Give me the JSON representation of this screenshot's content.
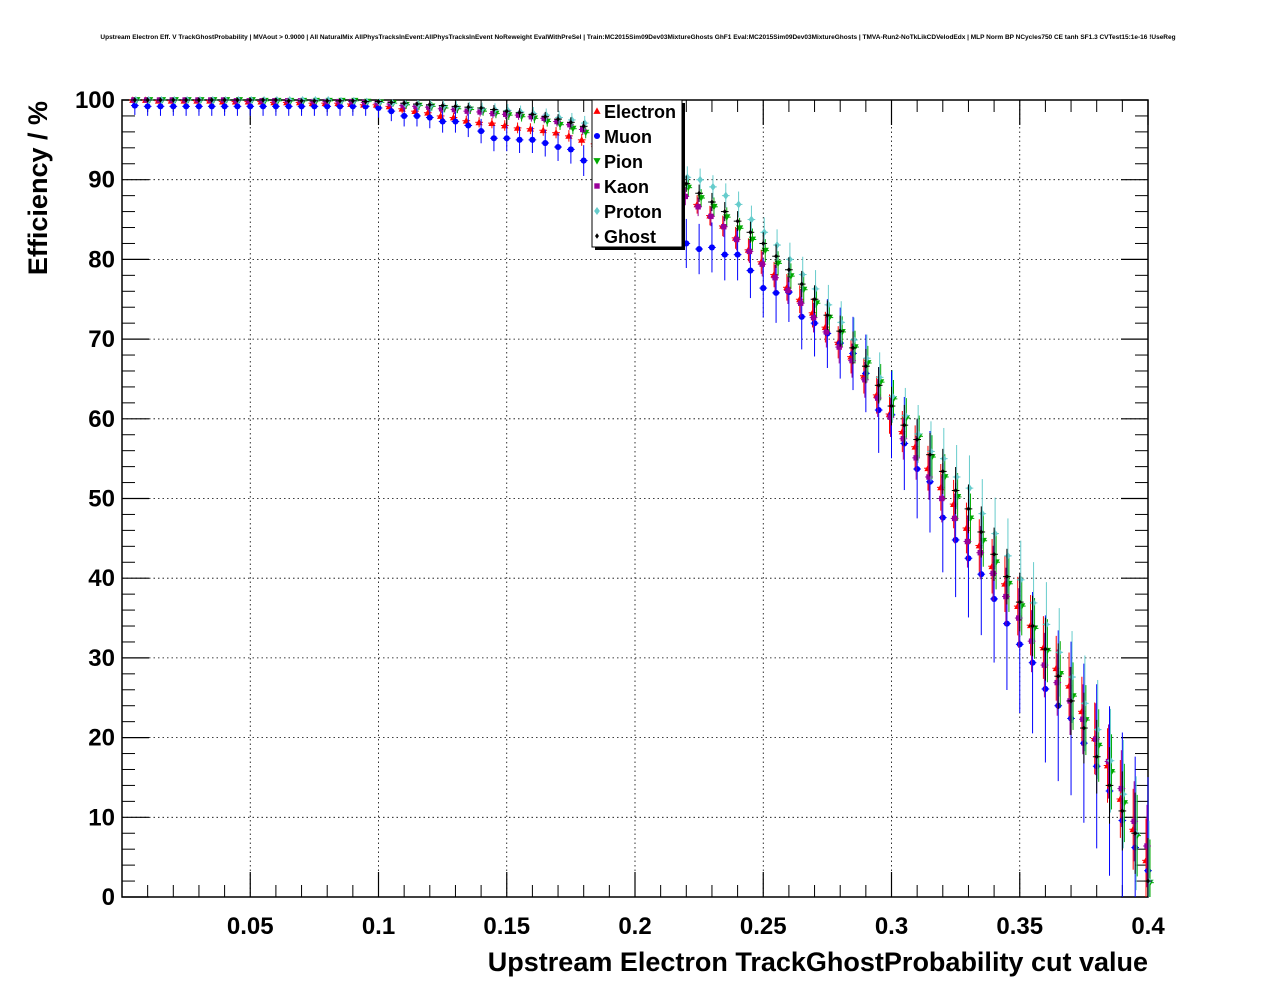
{
  "chart_data": {
    "type": "scatter",
    "title": "Upstream Electron Eff. V TrackGhostProbability | MVAout > 0.9000 | All NaturalMix AllPhysTracksInEvent:AllPhysTracksInEvent NoReweight EvalWithPreSel | Train:MC2015Sim09Dev03MixtureGhosts GhF1 Eval:MC2015Sim09Dev03MixtureGhosts | TMVA-Run2-NoTkLikCDVelodEdx | MLP Norm BP NCycles750 CE tanh SF1.3 CVTest15:1e-16 !UseReg",
    "xlabel": "Upstream Electron TrackGhostProbability cut value",
    "ylabel": "Efficiency / %",
    "xlim": [
      0.0,
      0.4
    ],
    "ylim": [
      0,
      100
    ],
    "xticks": [
      "0.05",
      "0.1",
      "0.15",
      "0.2",
      "0.25",
      "0.3",
      "0.35",
      "0.4"
    ],
    "yticks": [
      "0",
      "10",
      "20",
      "30",
      "40",
      "50",
      "60",
      "70",
      "80",
      "90",
      "100"
    ],
    "grid": true,
    "legend_position": "top-center",
    "x": [
      0.005,
      0.01,
      0.015,
      0.02,
      0.025,
      0.03,
      0.035,
      0.04,
      0.045,
      0.05,
      0.055,
      0.06,
      0.065,
      0.07,
      0.075,
      0.08,
      0.085,
      0.09,
      0.095,
      0.1,
      0.105,
      0.11,
      0.115,
      0.12,
      0.125,
      0.13,
      0.135,
      0.14,
      0.145,
      0.15,
      0.155,
      0.16,
      0.165,
      0.17,
      0.175,
      0.18,
      0.185,
      0.19,
      0.195,
      0.2,
      0.205,
      0.21,
      0.215,
      0.22,
      0.225,
      0.23,
      0.235,
      0.24,
      0.245,
      0.25,
      0.255,
      0.26,
      0.265,
      0.27,
      0.275,
      0.28,
      0.285,
      0.29,
      0.295,
      0.3,
      0.305,
      0.31,
      0.315,
      0.32,
      0.325,
      0.33,
      0.335,
      0.34,
      0.345,
      0.35,
      0.355,
      0.36,
      0.365,
      0.37,
      0.375,
      0.38,
      0.385,
      0.39,
      0.395,
      0.4
    ],
    "series": [
      {
        "name": "Electron",
        "color": "#ff0000",
        "marker": "triangle-up",
        "values": [
          100.0,
          100.0,
          99.9,
          99.9,
          99.9,
          99.9,
          99.9,
          99.8,
          99.8,
          99.8,
          99.8,
          99.7,
          99.7,
          99.7,
          99.6,
          99.6,
          99.6,
          99.5,
          99.4,
          99.4,
          99.2,
          98.9,
          98.6,
          98.4,
          98.0,
          97.8,
          97.4,
          97.2,
          97.1,
          96.8,
          96.5,
          96.4,
          96.2,
          95.9,
          95.5,
          95.0,
          94.5,
          93.8,
          93.0,
          92.3,
          91.3,
          90.4,
          89.3,
          88.1,
          86.9,
          85.5,
          84.2,
          82.7,
          81.2,
          79.7,
          78.1,
          76.5,
          75.0,
          73.3,
          71.5,
          69.6,
          67.8,
          65.4,
          63.0,
          60.6,
          58.4,
          56.5,
          53.8,
          51.4,
          49.3,
          46.3,
          44.1,
          41.5,
          39.3,
          36.5,
          34.1,
          31.3,
          28.7,
          26.5,
          23.3,
          19.9,
          16.5,
          12.3,
          8.5,
          4.6
        ]
      },
      {
        "name": "Muon",
        "color": "#0000ff",
        "marker": "circle",
        "values": [
          99.3,
          99.2,
          99.2,
          99.2,
          99.2,
          99.2,
          99.2,
          99.2,
          99.2,
          99.2,
          99.2,
          99.2,
          99.2,
          99.2,
          99.2,
          99.2,
          99.2,
          99.2,
          99.2,
          99.0,
          98.6,
          98.0,
          98.0,
          97.8,
          97.3,
          97.3,
          96.8,
          96.1,
          95.2,
          95.2,
          95.0,
          95.0,
          94.6,
          94.1,
          93.8,
          92.4,
          92.3,
          90.9,
          90.0,
          87.5,
          86.8,
          85.5,
          84.8,
          82.0,
          81.3,
          81.5,
          80.6,
          80.6,
          78.6,
          76.4,
          75.8,
          75.9,
          72.8,
          72.0,
          70.7,
          69.5,
          68.2,
          65.7,
          61.1,
          60.5,
          56.9,
          53.7,
          52.1,
          47.6,
          44.8,
          42.5,
          40.5,
          37.4,
          34.3,
          31.7,
          29.4,
          26.1,
          24.0,
          22.4,
          19.3,
          16.4,
          13.3,
          9.6,
          6.2,
          3.3
        ]
      },
      {
        "name": "Pion",
        "color": "#00aa00",
        "marker": "triangle-down",
        "values": [
          100.0,
          100.0,
          100.0,
          100.0,
          100.0,
          100.0,
          100.0,
          100.0,
          100.0,
          100.0,
          99.9,
          99.9,
          99.9,
          99.9,
          99.9,
          99.9,
          99.9,
          99.9,
          99.8,
          99.7,
          99.6,
          99.4,
          99.3,
          99.2,
          99.0,
          98.9,
          98.8,
          98.6,
          98.3,
          98.1,
          97.9,
          97.7,
          97.3,
          96.9,
          96.4,
          95.9,
          95.3,
          94.8,
          94.2,
          93.5,
          92.6,
          91.5,
          90.3,
          89.0,
          87.7,
          86.6,
          85.3,
          83.9,
          82.5,
          81.1,
          79.5,
          77.9,
          76.2,
          74.5,
          72.7,
          70.9,
          69.0,
          67.0,
          64.6,
          62.5,
          60.1,
          57.8,
          55.2,
          52.7,
          50.2,
          47.5,
          44.7,
          42.0,
          39.3,
          36.5,
          33.7,
          30.9,
          28.0,
          25.2,
          22.2,
          19.0,
          15.7,
          11.8,
          7.7,
          1.8
        ]
      },
      {
        "name": "Kaon",
        "color": "#990099",
        "marker": "square",
        "values": [
          100.0,
          100.0,
          100.0,
          100.0,
          100.0,
          100.0,
          100.0,
          100.0,
          99.9,
          99.9,
          99.9,
          99.9,
          99.9,
          99.9,
          99.8,
          99.8,
          99.8,
          99.8,
          99.7,
          99.6,
          99.5,
          99.3,
          99.2,
          99.1,
          98.9,
          98.8,
          98.6,
          98.5,
          98.3,
          98.2,
          98.1,
          97.9,
          97.7,
          97.3,
          96.9,
          96.3,
          95.6,
          94.9,
          94.0,
          93.0,
          91.8,
          90.5,
          89.3,
          87.9,
          86.6,
          85.4,
          84.1,
          82.5,
          81.0,
          79.4,
          77.7,
          76.1,
          74.5,
          72.7,
          70.9,
          69.0,
          67.3,
          64.9,
          62.6,
          60.2,
          57.5,
          55.1,
          52.7,
          50.0,
          47.5,
          44.6,
          43.2,
          40.6,
          37.7,
          35.0,
          32.1,
          29.1,
          26.9,
          24.6,
          22.3,
          19.8,
          17.0,
          13.6,
          9.5,
          6.4
        ]
      },
      {
        "name": "Proton",
        "color": "#66cccc",
        "marker": "diamond",
        "values": [
          100.0,
          100.0,
          100.0,
          100.0,
          100.0,
          100.0,
          100.0,
          100.0,
          100.0,
          100.0,
          100.0,
          100.0,
          100.0,
          100.0,
          100.0,
          100.0,
          99.9,
          99.9,
          99.8,
          99.7,
          99.6,
          99.5,
          99.4,
          99.3,
          99.2,
          99.1,
          99.0,
          98.9,
          98.8,
          98.7,
          98.5,
          98.3,
          98.1,
          97.8,
          97.5,
          97.1,
          96.6,
          96.0,
          95.3,
          94.5,
          93.6,
          92.5,
          91.4,
          90.3,
          90.0,
          89.1,
          88.0,
          86.9,
          85.0,
          83.4,
          81.8,
          80.0,
          78.1,
          76.3,
          74.3,
          72.1,
          69.9,
          67.6,
          65.2,
          62.8,
          60.4,
          58.1,
          55.9,
          55.0,
          52.7,
          51.3,
          48.1,
          45.6,
          42.8,
          39.8,
          36.9,
          34.2,
          30.7,
          27.6,
          24.3,
          21.0,
          17.1,
          12.9,
          8.0,
          2.0
        ]
      },
      {
        "name": "Ghost",
        "color": "#000000",
        "marker": "small-diamond",
        "values": [
          100.0,
          100.0,
          100.0,
          100.0,
          100.0,
          100.0,
          100.0,
          100.0,
          100.0,
          100.0,
          100.0,
          100.0,
          99.9,
          99.9,
          99.9,
          99.9,
          99.9,
          99.9,
          99.8,
          99.8,
          99.7,
          99.6,
          99.5,
          99.4,
          99.3,
          99.2,
          99.1,
          99.0,
          98.8,
          98.6,
          98.4,
          98.2,
          97.9,
          97.6,
          97.2,
          96.7,
          96.2,
          95.5,
          94.8,
          94.0,
          93.0,
          92.0,
          90.8,
          89.5,
          88.3,
          87.2,
          86.0,
          84.8,
          83.4,
          82.0,
          80.4,
          78.7,
          76.9,
          75.0,
          73.0,
          71.0,
          68.9,
          66.6,
          64.2,
          61.6,
          59.2,
          57.4,
          55.5,
          53.4,
          51.0,
          48.7,
          45.8,
          43.0,
          40.2,
          37.0,
          34.0,
          31.1,
          27.7,
          24.6,
          21.2,
          17.6,
          14.0,
          10.8,
          8.0,
          2.0
        ]
      }
    ]
  }
}
